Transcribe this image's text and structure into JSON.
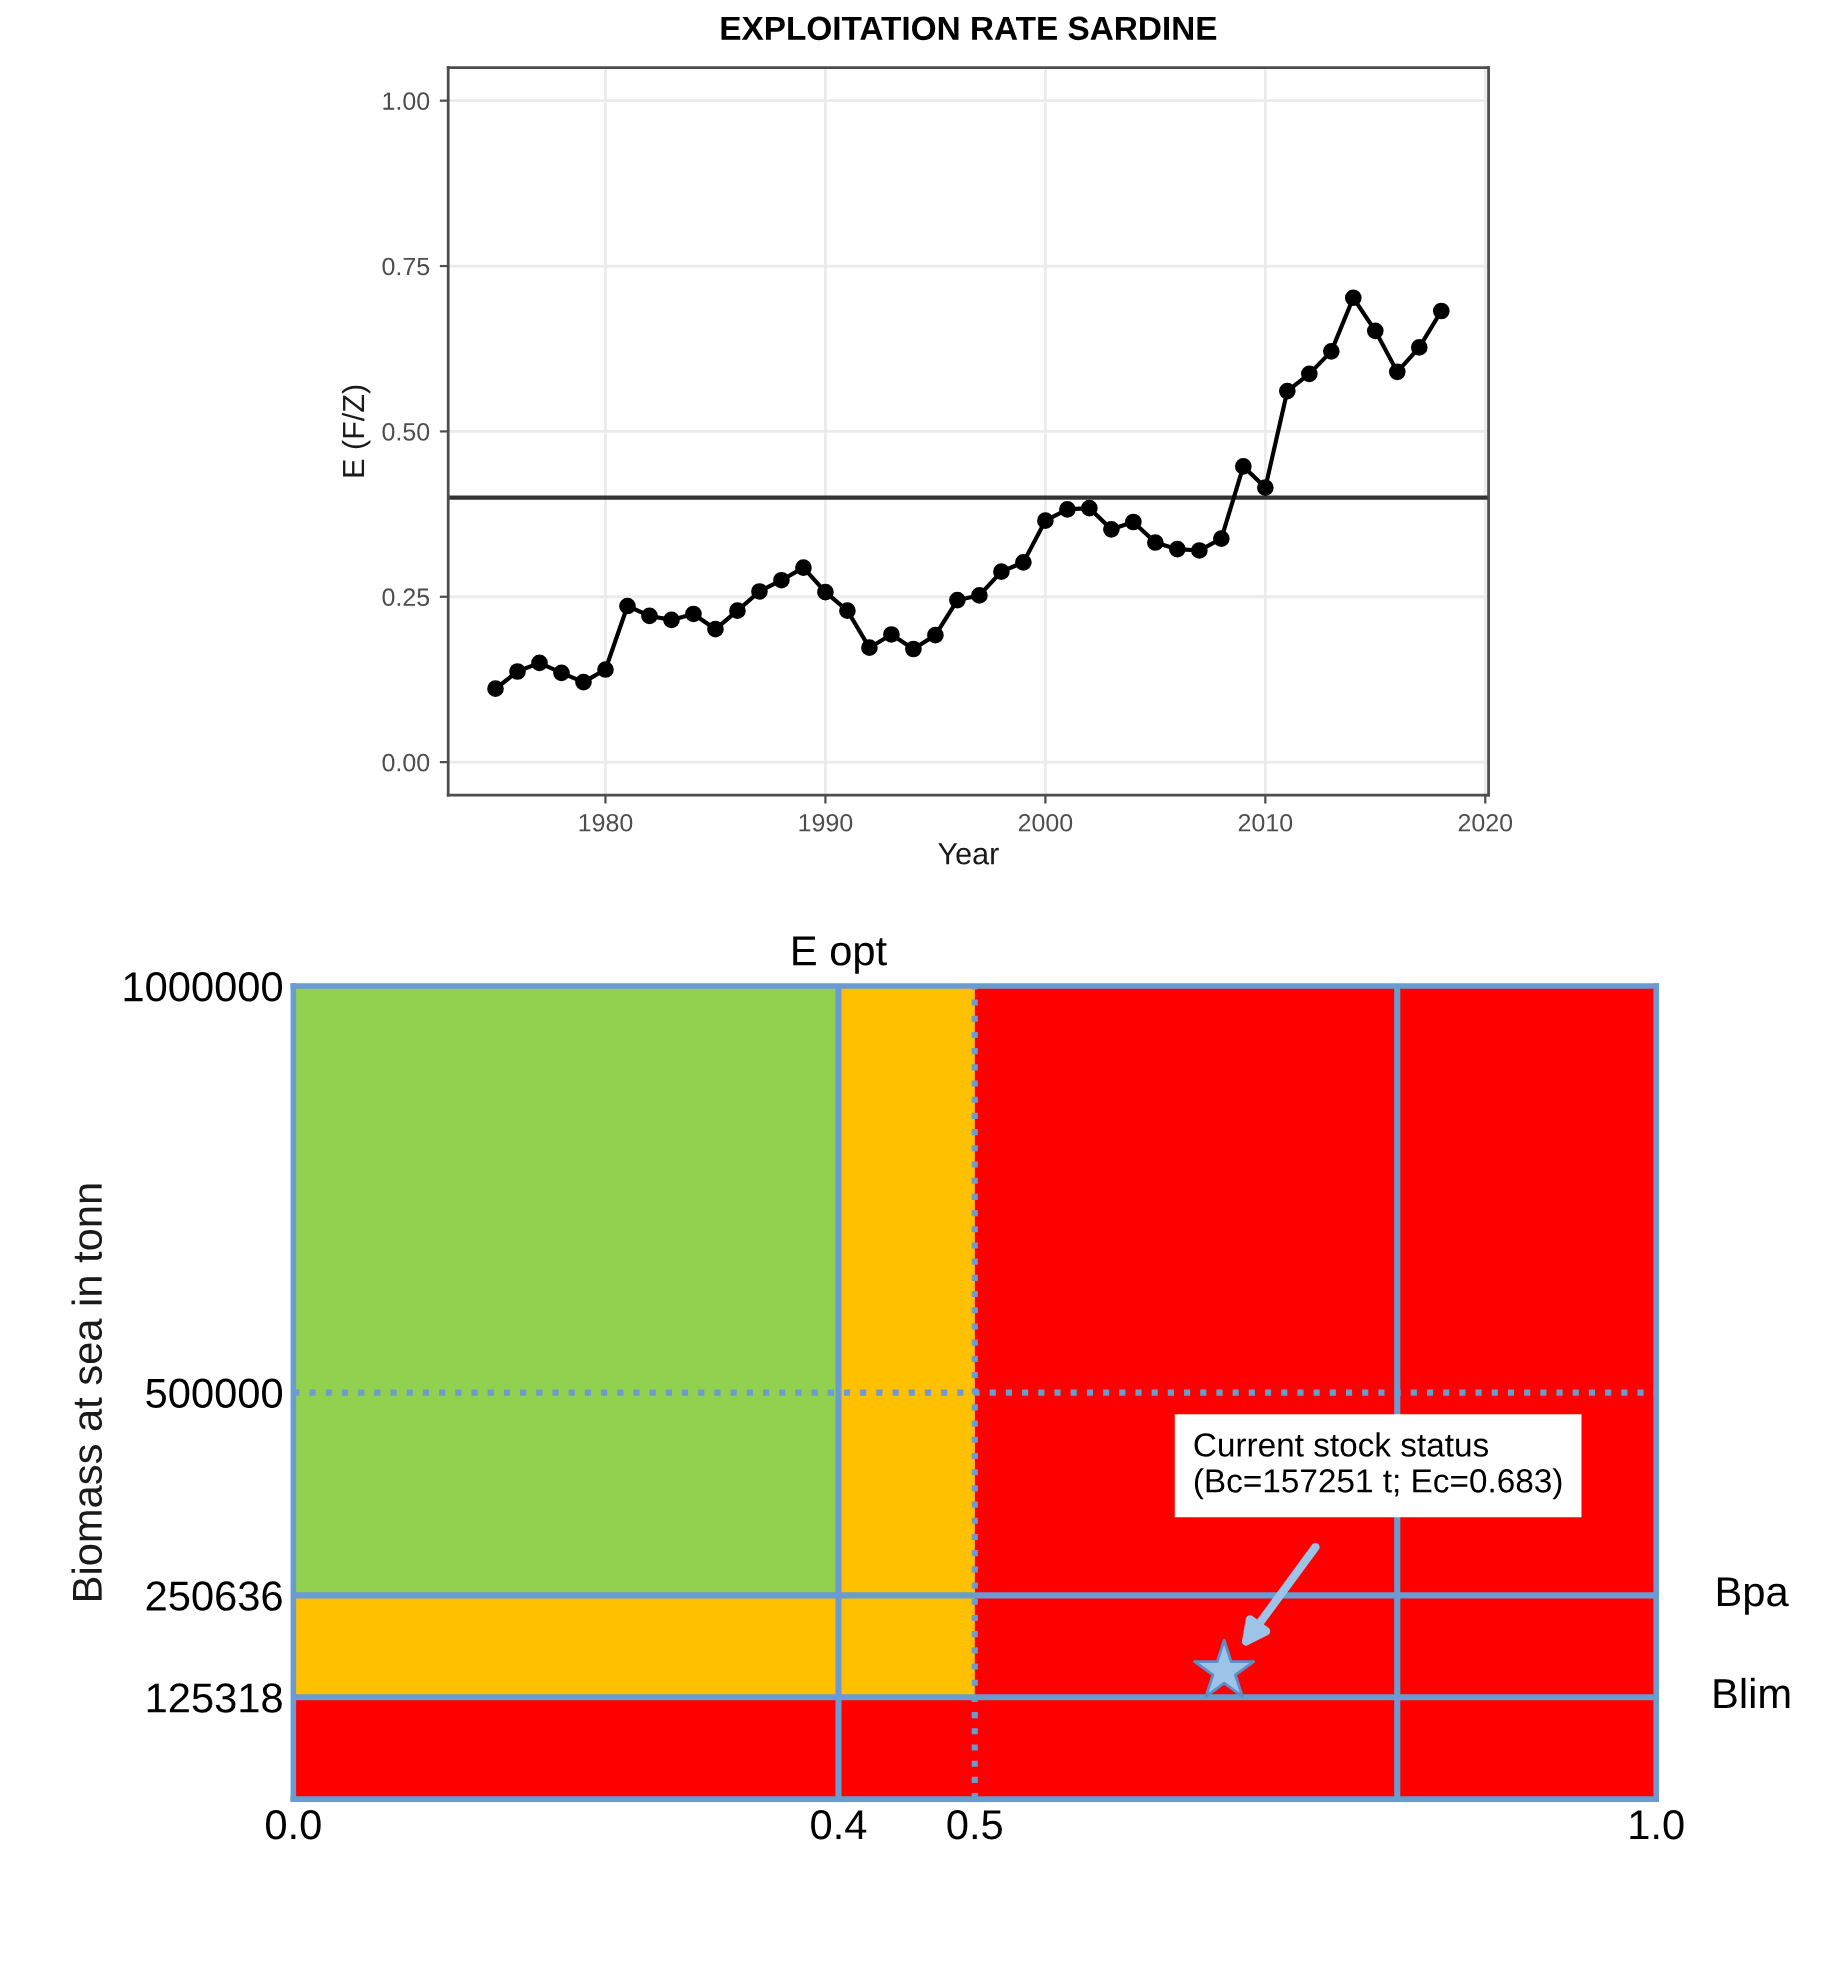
{
  "chart_data": [
    {
      "type": "line",
      "title": "EXPLOITATION RATE SARDINE",
      "xlabel": "Year",
      "ylabel": "E (F/Z)",
      "x": [
        1975,
        1976,
        1977,
        1978,
        1979,
        1980,
        1981,
        1982,
        1983,
        1984,
        1985,
        1986,
        1987,
        1988,
        1989,
        1990,
        1991,
        1992,
        1993,
        1994,
        1995,
        1996,
        1997,
        1998,
        1999,
        2000,
        2001,
        2002,
        2003,
        2004,
        2005,
        2006,
        2007,
        2008,
        2009,
        2010,
        2011,
        2012,
        2013,
        2014,
        2015,
        2016,
        2017,
        2018
      ],
      "series": [
        {
          "color": "#000000",
          "values": [
            0.111,
            0.137,
            0.15,
            0.135,
            0.121,
            0.14,
            0.236,
            0.221,
            0.215,
            0.224,
            0.201,
            0.229,
            0.258,
            0.275,
            0.294,
            0.257,
            0.229,
            0.173,
            0.193,
            0.171,
            0.192,
            0.245,
            0.252,
            0.288,
            0.302,
            0.365,
            0.382,
            0.384,
            0.352,
            0.363,
            0.332,
            0.322,
            0.32,
            0.338,
            0.447,
            0.415,
            0.561,
            0.587,
            0.621,
            0.702,
            0.652,
            0.59,
            0.627,
            0.682
          ]
        }
      ],
      "xlim": [
        1972.85,
        2020.15
      ],
      "ylim": [
        -0.05,
        1.05
      ],
      "xticks": [
        1980,
        1990,
        2000,
        2010,
        2020
      ],
      "yticks": [
        {
          "value": 0,
          "label": "0.00"
        },
        {
          "value": 0.25,
          "label": "0.25"
        },
        {
          "value": 0.5,
          "label": "0.50"
        },
        {
          "value": 0.75,
          "label": "0.75"
        },
        {
          "value": 1,
          "label": "1.00"
        }
      ],
      "ref_lines": [
        {
          "axis": "y",
          "value": 0.4,
          "color": "#333333",
          "line_style": "solid"
        }
      ],
      "grid": true,
      "marker": "circle",
      "line_style": "solid"
    },
    {
      "type": "scatter",
      "ylabel": "Biomass at sea in tonn",
      "x": [
        0.683
      ],
      "series": [
        {
          "color": "#9dc3e6",
          "values": [
            157251
          ]
        }
      ],
      "marker": "star",
      "xlim": [
        0,
        1
      ],
      "ylim": [
        0,
        1000000
      ],
      "xticks": [
        {
          "value": 0,
          "label": "0.0"
        },
        {
          "value": 0.4,
          "label": "0.4"
        },
        {
          "value": 0.5,
          "label": "0.5"
        },
        {
          "value": 1,
          "label": "1.0"
        }
      ],
      "yticks": [
        125318,
        250636,
        500000,
        1000000
      ],
      "bands": [
        {
          "axis": "x",
          "from": 0,
          "to": 0.4,
          "color": "#92d050"
        },
        {
          "axis": "x",
          "from": 0.4,
          "to": 0.5,
          "color": "#ffc000"
        },
        {
          "axis": "y",
          "from": 125318,
          "to": 250636,
          "color": "#ffc000"
        },
        {
          "axis": "x",
          "from": 0.5,
          "to": 1,
          "color": "#ff0000"
        },
        {
          "axis": "y",
          "from": 0,
          "to": 125318,
          "color": "#ff0000"
        }
      ],
      "ref_lines": [
        {
          "axis": "x",
          "value": 0.4,
          "label": "E opt",
          "color": "#6a9bd1",
          "line_style": "solid"
        },
        {
          "axis": "x",
          "value": 0.5,
          "color": "#6a9bd1",
          "line_style": "dotted"
        },
        {
          "axis": "x",
          "value": 0.81,
          "color": "#6a9bd1",
          "line_style": "solid"
        },
        {
          "axis": "y",
          "value": 500000,
          "color": "#6a9bd1",
          "line_style": "dotted"
        },
        {
          "axis": "y",
          "value": 250636,
          "label": "Bpa",
          "color": "#6a9bd1",
          "line_style": "solid"
        },
        {
          "axis": "y",
          "value": 125318,
          "label": "Blim",
          "color": "#6a9bd1",
          "line_style": "solid"
        }
      ],
      "annotations": [
        "Current stock status\n(Bc=157251 t; Ec=0.683)"
      ],
      "grid": false
    }
  ]
}
